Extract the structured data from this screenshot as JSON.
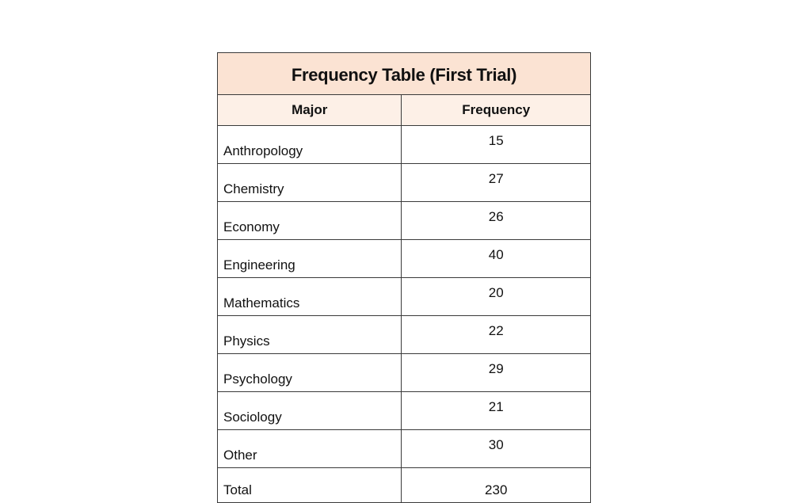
{
  "table": {
    "title": "Frequency Table (First Trial)",
    "headers": [
      "Major",
      "Frequency"
    ],
    "rows": [
      {
        "major": "Anthropology",
        "frequency": "15"
      },
      {
        "major": "Chemistry",
        "frequency": "27"
      },
      {
        "major": "Economy",
        "frequency": "26"
      },
      {
        "major": "Engineering",
        "frequency": "40"
      },
      {
        "major": "Mathematics",
        "frequency": "20"
      },
      {
        "major": "Physics",
        "frequency": "22"
      },
      {
        "major": "Psychology",
        "frequency": "29"
      },
      {
        "major": "Sociology",
        "frequency": "21"
      },
      {
        "major": "Other",
        "frequency": "30"
      }
    ],
    "total": {
      "label": "Total",
      "frequency": "230"
    }
  },
  "colors": {
    "title_background": "#fbe3d3",
    "header_background": "#fdf0e7",
    "border": "#3a3a3a"
  }
}
